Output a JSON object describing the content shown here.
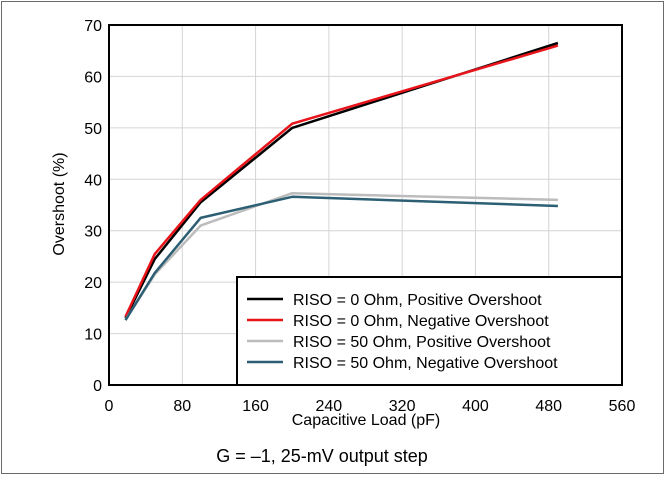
{
  "chart_data": {
    "type": "line",
    "title": "",
    "caption": "G = –1, 25-mV output step",
    "xlabel": "Capacitive Load (pF)",
    "ylabel": "Overshoot (%)",
    "xlim": [
      0,
      560
    ],
    "ylim": [
      0,
      70
    ],
    "xticks": [
      0,
      80,
      160,
      240,
      320,
      400,
      480,
      560
    ],
    "yticks": [
      0,
      10,
      20,
      30,
      40,
      50,
      60,
      70
    ],
    "grid": true,
    "legend_position": "bottom-right",
    "series": [
      {
        "name": "RISO = 0 Ohm, Positive Overshoot",
        "color": "#000000",
        "x": [
          18,
          50,
          100,
          200,
          490
        ],
        "y": [
          13.0,
          24.5,
          35.5,
          50.0,
          66.5
        ]
      },
      {
        "name": "RISO = 0 Ohm, Negative Overshoot",
        "color": "#e8141a",
        "x": [
          18,
          50,
          100,
          200,
          490
        ],
        "y": [
          13.3,
          25.5,
          36.0,
          50.8,
          66.0
        ]
      },
      {
        "name": "RISO = 50 Ohm, Positive Overshoot",
        "color": "#bcbcbc",
        "x": [
          18,
          50,
          100,
          200,
          490
        ],
        "y": [
          12.7,
          21.5,
          31.0,
          37.3,
          36.0
        ]
      },
      {
        "name": "RISO = 50 Ohm, Negative Overshoot",
        "color": "#2c5f73",
        "x": [
          18,
          50,
          100,
          200,
          490
        ],
        "y": [
          12.6,
          21.8,
          32.5,
          36.6,
          34.8
        ]
      }
    ]
  }
}
